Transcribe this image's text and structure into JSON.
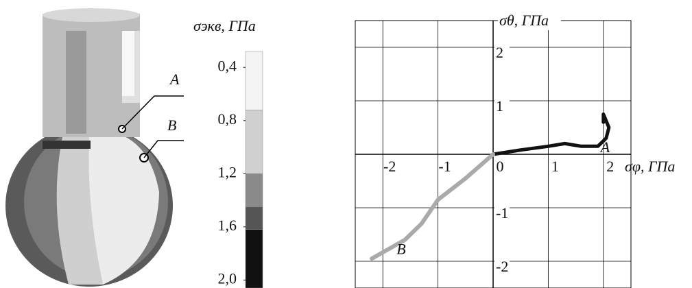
{
  "illustration": {
    "labels": [
      "A",
      "B"
    ]
  },
  "chart_data": [
    {
      "type": "colorbar",
      "title": "σэкв, ГПа",
      "colors": [
        "#f4f4f4",
        "#d0d0d0",
        "#8a8a8a",
        "#555555",
        "#111111"
      ],
      "levels": [
        0.28,
        0.72,
        1.2,
        1.45,
        1.62,
        2.06
      ],
      "ylim": [
        0.28,
        2.06
      ],
      "yticks": [
        {
          "value": 0.4,
          "label": "0,4"
        },
        {
          "value": 0.8,
          "label": "0,8"
        },
        {
          "value": 1.2,
          "label": "1,2"
        },
        {
          "value": 1.6,
          "label": "1,6"
        },
        {
          "value": 2.0,
          "label": "2,0"
        }
      ]
    },
    {
      "type": "line",
      "x_label": "σφ, ГПа",
      "y_label": "σθ, ГПа",
      "xlim": [
        -2.5,
        2.5
      ],
      "ylim": [
        -2.5,
        2.5
      ],
      "xticks": [
        -2,
        -1,
        0,
        1,
        2
      ],
      "yticks": [
        -2,
        -1,
        1,
        2
      ],
      "grid": true,
      "series": [
        {
          "name": "A",
          "color": "#111111",
          "x": [
            0,
            0.5,
            1,
            1.3,
            1.6,
            1.9,
            2.05,
            2.1,
            2.0,
            2.0
          ],
          "values": [
            0,
            0.08,
            0.15,
            0.2,
            0.15,
            0.15,
            0.3,
            0.5,
            0.75,
            0.6
          ]
        },
        {
          "name": "B",
          "color": "#aaaaaa",
          "x": [
            0,
            -0.5,
            -1,
            -1.3,
            -1.6,
            -2.2
          ],
          "values": [
            0,
            -0.45,
            -0.85,
            -1.3,
            -1.6,
            -1.95
          ]
        }
      ]
    }
  ]
}
